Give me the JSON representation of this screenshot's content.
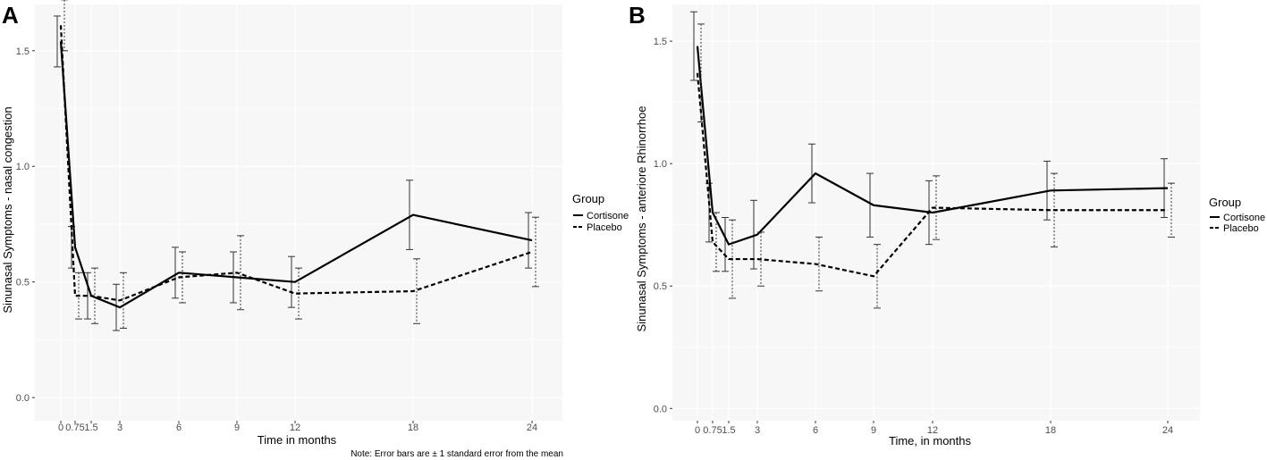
{
  "note": "Note: Error bars are ± 1 standard error from the mean",
  "legend": {
    "title": "Group",
    "labels": [
      "Cortisone",
      "Placebo"
    ]
  },
  "chart_data": [
    {
      "panel": "A",
      "type": "line",
      "xlabel": "Time in months",
      "ylabel": "Sinunasal Symptoms - nasal congestion",
      "x": [
        0,
        0.75,
        1.5,
        3,
        6,
        9,
        12,
        18,
        24
      ],
      "x_tick_labels": [
        "0",
        "0.75",
        "1.5",
        "3",
        "6",
        "9",
        "12",
        "18",
        "24"
      ],
      "ylim": [
        -0.1,
        1.7
      ],
      "y_ticks": [
        0.0,
        0.5,
        1.0,
        1.5
      ],
      "y_tick_labels": [
        "0.0",
        "0.5",
        "1.0",
        "1.5"
      ],
      "series": [
        {
          "name": "Cortisone",
          "values": [
            1.54,
            0.65,
            0.44,
            0.39,
            0.54,
            0.52,
            0.5,
            0.79,
            0.68
          ],
          "se": [
            0.11,
            0.09,
            0.1,
            0.1,
            0.11,
            0.11,
            0.11,
            0.15,
            0.12
          ]
        },
        {
          "name": "Placebo",
          "values": [
            1.61,
            0.44,
            0.44,
            0.42,
            0.52,
            0.54,
            0.45,
            0.46,
            0.63
          ],
          "se": [
            0.11,
            0.1,
            0.12,
            0.12,
            0.11,
            0.16,
            0.11,
            0.14,
            0.15
          ]
        }
      ]
    },
    {
      "panel": "B",
      "type": "line",
      "xlabel": "Time, in months",
      "ylabel": "Sinunasal Symptoms - anteriore Rhinorrhoe",
      "x": [
        0,
        0.75,
        1.5,
        3,
        6,
        9,
        12,
        18,
        24
      ],
      "x_tick_labels": [
        "0",
        "0.75",
        "1.5",
        "3",
        "6",
        "9",
        "12",
        "18",
        "24"
      ],
      "ylim": [
        -0.05,
        1.65
      ],
      "y_ticks": [
        0.0,
        0.5,
        1.0,
        1.5
      ],
      "y_tick_labels": [
        "0.0",
        "0.5",
        "1.0",
        "1.5"
      ],
      "series": [
        {
          "name": "Cortisone",
          "values": [
            1.48,
            0.8,
            0.67,
            0.71,
            0.96,
            0.83,
            0.8,
            0.89,
            0.9
          ],
          "se": [
            0.14,
            0.12,
            0.11,
            0.14,
            0.12,
            0.13,
            0.13,
            0.12,
            0.12
          ]
        },
        {
          "name": "Placebo",
          "values": [
            1.37,
            0.68,
            0.61,
            0.61,
            0.59,
            0.54,
            0.82,
            0.81,
            0.81
          ],
          "se": [
            0.2,
            0.12,
            0.16,
            0.11,
            0.11,
            0.13,
            0.13,
            0.15,
            0.11
          ]
        }
      ]
    }
  ]
}
